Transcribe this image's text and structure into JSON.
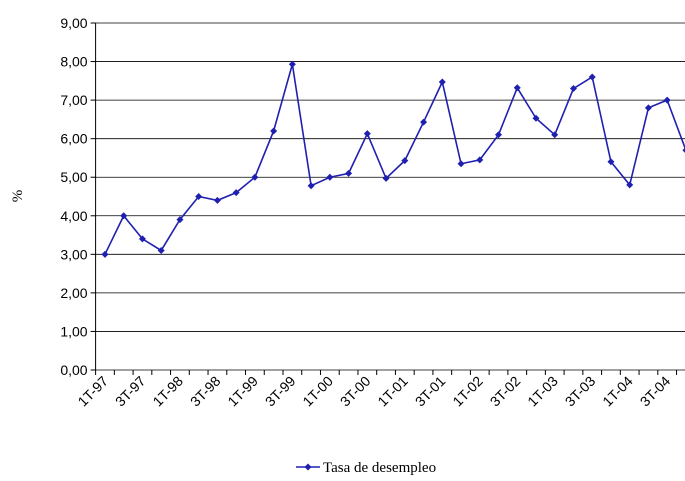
{
  "chart_data": {
    "type": "line",
    "y_label": "%",
    "categories": [
      "1T-97",
      null,
      "3T-97",
      null,
      "1T-98",
      null,
      "3T-98",
      null,
      "1T-99",
      null,
      "3T-99",
      null,
      "1T-00",
      null,
      "3T-00",
      null,
      "1T-01",
      null,
      "3T-01",
      null,
      "1T-02",
      null,
      "3T-02",
      null,
      "1T-03",
      null,
      "3T-03",
      null,
      "1T-04",
      null,
      "3T-04",
      null
    ],
    "series": [
      {
        "name": "Tasa de desempleo",
        "color": "#2020b0",
        "values": [
          3.0,
          4.0,
          3.4,
          3.1,
          3.9,
          4.5,
          4.4,
          4.6,
          5.0,
          6.2,
          7.93,
          4.78,
          5.0,
          5.1,
          6.13,
          4.97,
          5.43,
          6.43,
          7.47,
          5.35,
          5.45,
          6.1,
          7.32,
          6.53,
          6.1,
          7.3,
          7.6,
          5.4,
          4.8,
          6.8,
          7.0,
          5.7
        ]
      }
    ],
    "ylim": [
      0,
      9
    ],
    "yticks": [
      {
        "value": 0,
        "label": "0,00"
      },
      {
        "value": 1,
        "label": "1,00"
      },
      {
        "value": 2,
        "label": "2,00"
      },
      {
        "value": 3,
        "label": "3,00"
      },
      {
        "value": 4,
        "label": "4,00"
      },
      {
        "value": 5,
        "label": "5,00"
      },
      {
        "value": 6,
        "label": "6,00"
      },
      {
        "value": 7,
        "label": "7,00"
      },
      {
        "value": 8,
        "label": "8,00"
      },
      {
        "value": 9,
        "label": "9,00"
      }
    ],
    "grid": true,
    "legend": "bottom"
  }
}
